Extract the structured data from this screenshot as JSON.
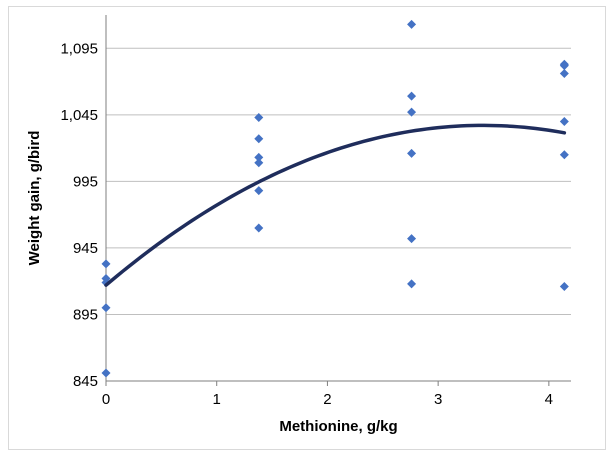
{
  "chart_data": {
    "type": "scatter",
    "xlabel": "Methionine, g/kg",
    "ylabel": "Weight gain, g/bird",
    "xlim": [
      0,
      4.2
    ],
    "ylim": [
      845,
      1120
    ],
    "x_ticks": [
      "0",
      "1",
      "2",
      "3",
      "4"
    ],
    "x_tick_values": [
      0,
      1,
      2,
      3,
      4
    ],
    "y_ticks": [
      "845",
      "895",
      "945",
      "995",
      "1,045",
      "1,095"
    ],
    "y_tick_values": [
      845,
      895,
      945,
      995,
      1045,
      1095
    ],
    "grid": "horizontal",
    "legend": "none",
    "colors": {
      "points": "#4472C4",
      "trend": "#1F2D5C",
      "grid": "#bfbfbf",
      "axis": "#7f7f7f"
    },
    "series": [
      {
        "type": "scatter",
        "marker": "diamond",
        "points": [
          [
            0,
            933
          ],
          [
            0,
            922
          ],
          [
            0,
            919
          ],
          [
            0,
            900
          ],
          [
            0,
            851
          ],
          [
            1.38,
            1043
          ],
          [
            1.38,
            1027
          ],
          [
            1.38,
            1013
          ],
          [
            1.38,
            1009
          ],
          [
            1.38,
            988
          ],
          [
            1.38,
            960
          ],
          [
            2.76,
            1113
          ],
          [
            2.76,
            1059
          ],
          [
            2.76,
            1047
          ],
          [
            2.76,
            1016
          ],
          [
            2.76,
            952
          ],
          [
            2.76,
            918
          ],
          [
            4.14,
            1083
          ],
          [
            4.14,
            1082
          ],
          [
            4.14,
            1076
          ],
          [
            4.14,
            1040
          ],
          [
            4.14,
            1015
          ],
          [
            4.14,
            916
          ]
        ]
      },
      {
        "type": "line",
        "role": "quadratic-trendline",
        "x_range": [
          0,
          4.14
        ],
        "coefficients": [
          917,
          70.5,
          -10.35
        ]
      }
    ]
  }
}
